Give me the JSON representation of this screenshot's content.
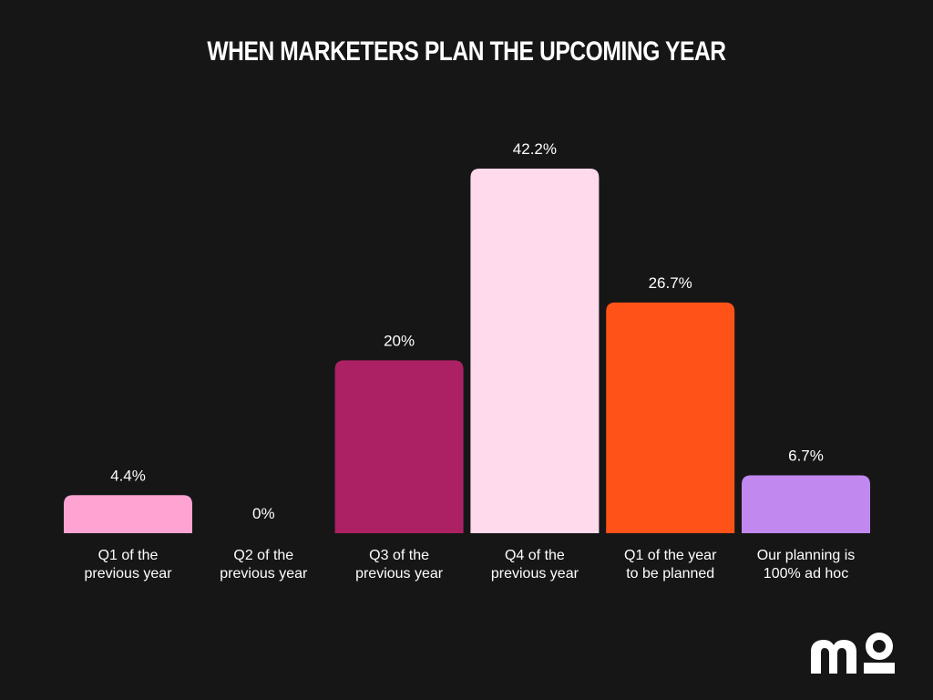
{
  "chart_data": {
    "type": "bar",
    "title": "WHEN MARKETERS PLAN THE UPCOMING YEAR",
    "categories": [
      [
        "Q1 of the",
        "previous year"
      ],
      [
        "Q2 of the",
        "previous year"
      ],
      [
        "Q3 of the",
        "previous year"
      ],
      [
        "Q4 of the",
        "previous year"
      ],
      [
        "Q1 of the year",
        "to be planned"
      ],
      [
        "Our planning is",
        "100% ad hoc"
      ]
    ],
    "values": [
      4.4,
      0,
      20,
      42.2,
      26.7,
      6.7
    ],
    "value_labels": [
      "4.4%",
      "0%",
      "20%",
      "42.2%",
      "26.7%",
      "6.7%"
    ],
    "colors": [
      "#FFA3D3",
      "#FFA3D3",
      "#AC2163",
      "#FFD9EC",
      "#FF5219",
      "#C188F0"
    ],
    "unit": "%",
    "ylim": [
      0,
      42.2
    ],
    "grid": false,
    "legend": "none"
  },
  "logo": {
    "text": "mo",
    "color": "#ffffff"
  }
}
